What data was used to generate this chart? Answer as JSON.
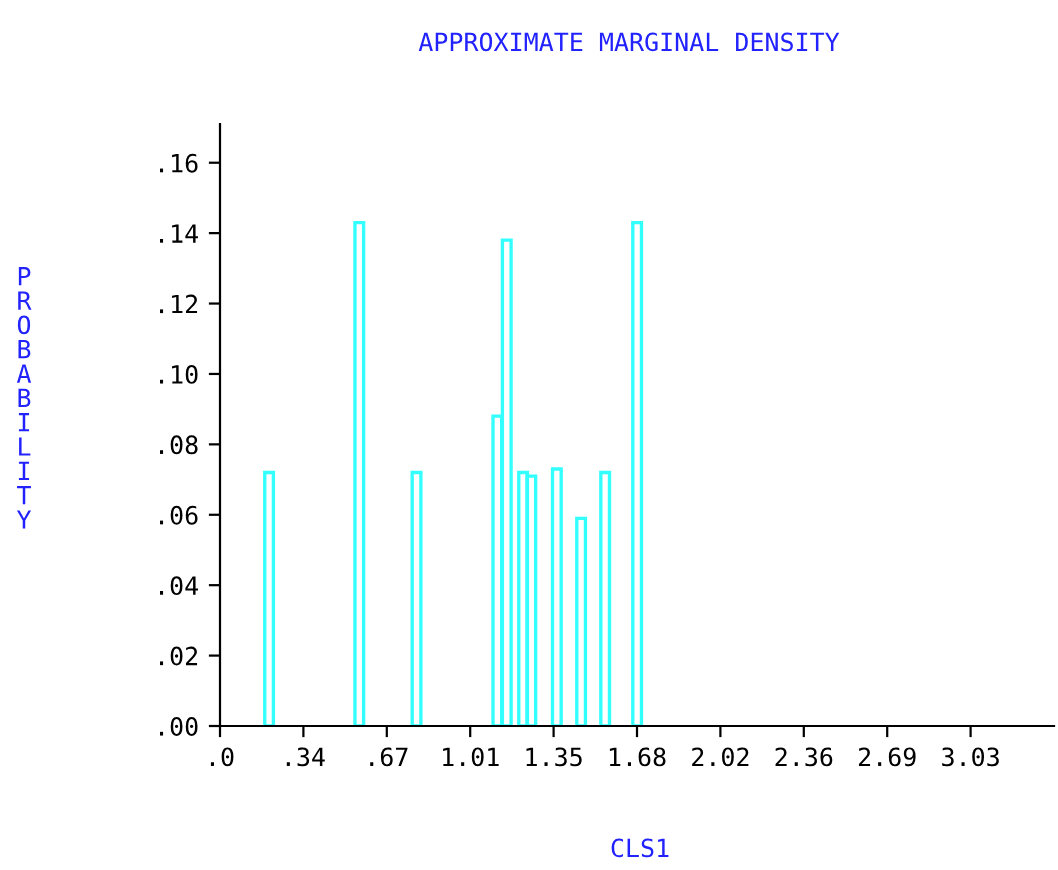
{
  "chart_data": {
    "type": "bar",
    "title": "APPROXIMATE MARGINAL DENSITY",
    "xlabel": "CLS1",
    "ylabel": "PROBABILITY",
    "x": [
      0.198,
      0.562,
      0.793,
      1.119,
      1.157,
      1.223,
      1.256,
      1.359,
      1.457,
      1.554,
      1.683
    ],
    "values": [
      0.072,
      0.143,
      0.072,
      0.088,
      0.138,
      0.072,
      0.071,
      0.073,
      0.059,
      0.072,
      0.143
    ],
    "color": "#33ffff",
    "xlim": [
      0,
      3.365
    ],
    "xticks": [
      {
        "value": 0,
        "label": ".0"
      },
      {
        "value": 0.3365,
        "label": ".34"
      },
      {
        "value": 0.673,
        "label": ".67"
      },
      {
        "value": 1.0095,
        "label": "1.01"
      },
      {
        "value": 1.346,
        "label": "1.35"
      },
      {
        "value": 1.6825,
        "label": "1.68"
      },
      {
        "value": 2.019,
        "label": "2.02"
      },
      {
        "value": 2.3555,
        "label": "2.36"
      },
      {
        "value": 2.692,
        "label": "2.69"
      },
      {
        "value": 3.0285,
        "label": "3.03"
      }
    ],
    "ylim": [
      0,
      0.171
    ],
    "yticks": [
      {
        "value": 0,
        "label": ".00"
      },
      {
        "value": 0.02,
        "label": ".02"
      },
      {
        "value": 0.04,
        "label": ".04"
      },
      {
        "value": 0.06,
        "label": ".06"
      },
      {
        "value": 0.08,
        "label": ".08"
      },
      {
        "value": 0.1,
        "label": ".10"
      },
      {
        "value": 0.12,
        "label": ".12"
      },
      {
        "value": 0.14,
        "label": ".14"
      },
      {
        "value": 0.16,
        "label": ".16"
      }
    ],
    "grid": false
  }
}
